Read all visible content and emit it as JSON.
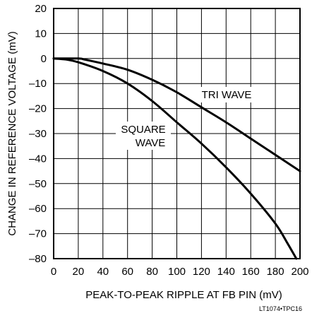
{
  "chart_data": {
    "type": "line",
    "xlabel": "PEAK-TO-PEAK RIPPLE AT FB PIN (mV)",
    "ylabel": "CHANGE IN REFERENCE VOLTAGE (mV)",
    "xlim": [
      0,
      200
    ],
    "ylim": [
      -80,
      20
    ],
    "x_ticks": [
      0,
      20,
      40,
      60,
      80,
      100,
      120,
      140,
      160,
      180,
      200
    ],
    "y_ticks": [
      20,
      10,
      0,
      -10,
      -20,
      -30,
      -40,
      -50,
      -60,
      -70,
      -80
    ],
    "x_tick_labels": [
      "0",
      "20",
      "40",
      "60",
      "80",
      "100",
      "120",
      "140",
      "160",
      "180",
      "200"
    ],
    "y_tick_labels": [
      "20",
      "10",
      "0",
      "–10",
      "–20",
      "–30",
      "–40",
      "–50",
      "–60",
      "–70",
      "–80"
    ],
    "grid": true,
    "series": [
      {
        "name": "TRI WAVE",
        "label_lines": [
          "TRI WAVE"
        ],
        "points": [
          [
            0,
            0
          ],
          [
            20,
            0
          ],
          [
            25,
            -0.4
          ],
          [
            40,
            -2
          ],
          [
            60,
            -4.5
          ],
          [
            80,
            -8.5
          ],
          [
            100,
            -13.5
          ],
          [
            120,
            -19.5
          ],
          [
            140,
            -25.5
          ],
          [
            160,
            -32
          ],
          [
            180,
            -38.5
          ],
          [
            200,
            -45
          ]
        ]
      },
      {
        "name": "SQUARE WAVE",
        "label_lines": [
          "SQUARE",
          "WAVE"
        ],
        "points": [
          [
            0,
            0
          ],
          [
            10,
            -0.4
          ],
          [
            20,
            -1.5
          ],
          [
            40,
            -5
          ],
          [
            60,
            -10
          ],
          [
            80,
            -17
          ],
          [
            100,
            -25.5
          ],
          [
            120,
            -34
          ],
          [
            140,
            -43.5
          ],
          [
            160,
            -54
          ],
          [
            180,
            -66
          ],
          [
            190,
            -74
          ],
          [
            197,
            -80
          ]
        ]
      }
    ],
    "footnote": "LT1074•TPC16"
  }
}
